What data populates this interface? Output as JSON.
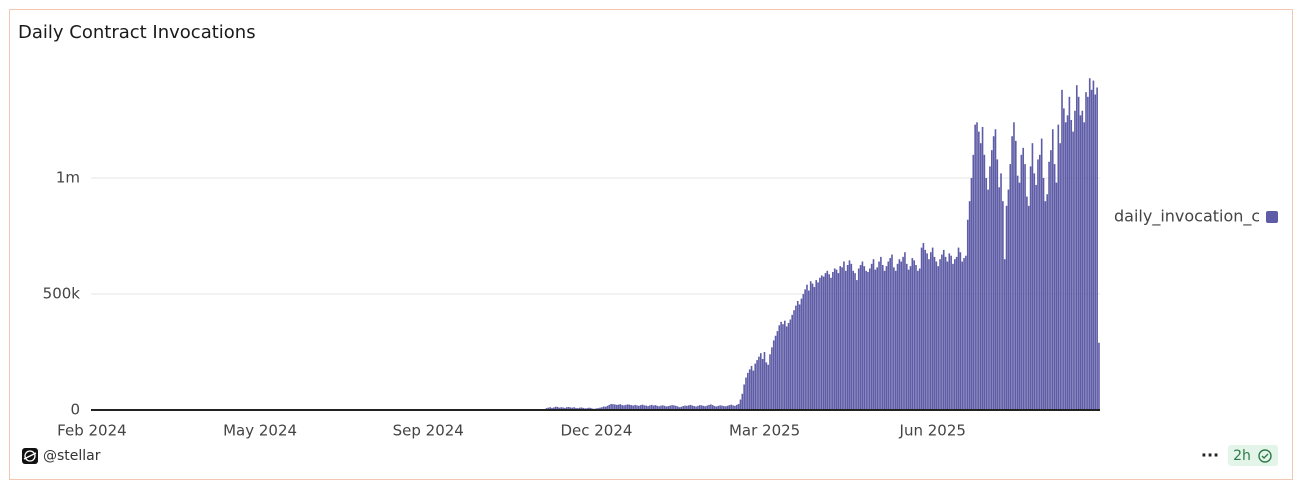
{
  "chart_data": {
    "type": "bar",
    "title": "Daily Contract Invocations",
    "footer_user": "@stellar",
    "more": "···",
    "freshness": "2h",
    "ylim": [
      0,
      1500000
    ],
    "yticks": [
      0,
      {
        "value": 500000,
        "label": "500k"
      },
      {
        "value": 1000000,
        "label": "1m"
      }
    ],
    "grid": true,
    "legend": "right",
    "categories": [
      "Feb 2024",
      null,
      null,
      null,
      null,
      null,
      null,
      null,
      null,
      null,
      null,
      null,
      null,
      null,
      null,
      null,
      null,
      null,
      null,
      null,
      null,
      null,
      null,
      null,
      null,
      null,
      null,
      null,
      null,
      null,
      null,
      null,
      null,
      null,
      null,
      null,
      null,
      null,
      null,
      null,
      null,
      null,
      null,
      null,
      null,
      null,
      null,
      null,
      null,
      null,
      null,
      null,
      null,
      null,
      null,
      null,
      null,
      null,
      null,
      null,
      null,
      null,
      null,
      null,
      null,
      null,
      null,
      null,
      null,
      null,
      null,
      null,
      null,
      null,
      null,
      null,
      null,
      null,
      null,
      null,
      null,
      null,
      null,
      null,
      null,
      null,
      null,
      null,
      null,
      null,
      null,
      "May 2024",
      null,
      null,
      null,
      null,
      null,
      null,
      null,
      null,
      null,
      null,
      null,
      null,
      null,
      null,
      null,
      null,
      null,
      null,
      null,
      null,
      null,
      null,
      null,
      null,
      null,
      null,
      null,
      null,
      null,
      null,
      null,
      null,
      null,
      null,
      null,
      null,
      null,
      null,
      null,
      null,
      null,
      null,
      null,
      null,
      null,
      null,
      null,
      null,
      null,
      null,
      null,
      null,
      null,
      null,
      null,
      null,
      null,
      null,
      null,
      null,
      null,
      null,
      null,
      null,
      null,
      null,
      null,
      null,
      null,
      null,
      null,
      null,
      null,
      null,
      null,
      null,
      null,
      null,
      null,
      null,
      null,
      null,
      null,
      null,
      null,
      null,
      null,
      null,
      null,
      null,
      "Sep 2024",
      null,
      null,
      null,
      null,
      null,
      null,
      null,
      null,
      null,
      null,
      null,
      null,
      null,
      null,
      null,
      null,
      null,
      null,
      null,
      null,
      null,
      null,
      null,
      null,
      null,
      null,
      null,
      null,
      null,
      null,
      null,
      null,
      null,
      null,
      null,
      null,
      null,
      null,
      null,
      null,
      null,
      null,
      null,
      null,
      null,
      null,
      null,
      null,
      null,
      null,
      null,
      null,
      null,
      null,
      null,
      null,
      null,
      null,
      null,
      null,
      null,
      null,
      null,
      null,
      null,
      null,
      null,
      null,
      null,
      null,
      null,
      null,
      null,
      null,
      null,
      null,
      null,
      null,
      null,
      null,
      null,
      null,
      null,
      null,
      null,
      null,
      null,
      null,
      null,
      null,
      "Dec 2024",
      null,
      null,
      null,
      null,
      null,
      null,
      null,
      null,
      null,
      null,
      null,
      null,
      null,
      null,
      null,
      null,
      null,
      null,
      null,
      null,
      null,
      null,
      null,
      null,
      null,
      null,
      null,
      null,
      null,
      null,
      null,
      null,
      null,
      null,
      null,
      null,
      null,
      null,
      null,
      null,
      null,
      null,
      null,
      null,
      null,
      null,
      null,
      null,
      null,
      null,
      null,
      null,
      null,
      null,
      null,
      null,
      null,
      null,
      null,
      null,
      null,
      null,
      null,
      null,
      null,
      null,
      null,
      null,
      null,
      null,
      null,
      null,
      null,
      null,
      null,
      null,
      null,
      null,
      null,
      null,
      null,
      null,
      null,
      null,
      null,
      null,
      null,
      null,
      null,
      null,
      "Mar 2025",
      null,
      null,
      null,
      null,
      null,
      null,
      null,
      null,
      null,
      null,
      null,
      null,
      null,
      null,
      null,
      null,
      null,
      null,
      null,
      null,
      null,
      null,
      null,
      null,
      null,
      null,
      null,
      null,
      null,
      null,
      null,
      null,
      null,
      null,
      null,
      null,
      null,
      null,
      null,
      null,
      null,
      null,
      null,
      null,
      null,
      null,
      null,
      null,
      null,
      null,
      null,
      null,
      null,
      null,
      null,
      null,
      null,
      null,
      null,
      null,
      null,
      null,
      null,
      null,
      null,
      null,
      null,
      null,
      null,
      null,
      null,
      null,
      null,
      null,
      null,
      null,
      null,
      null,
      null,
      null,
      null,
      null,
      null,
      null,
      null,
      null,
      null,
      null,
      null,
      null,
      "Jun 2025",
      null,
      null,
      null,
      null,
      null,
      null,
      null,
      null,
      null,
      null,
      null,
      null,
      null,
      null,
      null,
      null,
      null,
      null,
      null,
      null,
      null,
      null,
      null,
      null,
      null,
      null,
      null,
      null,
      null,
      null,
      null,
      null,
      null,
      null,
      null,
      null,
      null,
      null,
      null,
      null,
      null,
      null,
      null,
      null,
      null,
      null,
      null,
      null,
      null,
      null,
      null,
      null,
      null,
      null,
      null,
      null,
      null,
      null,
      null,
      null,
      null,
      null,
      null,
      null,
      null,
      null,
      null,
      null,
      null,
      null,
      null,
      null,
      null,
      null,
      null,
      null,
      null,
      null,
      null,
      null,
      null,
      null,
      null,
      null,
      null,
      null,
      null,
      null,
      null,
      null
    ],
    "series": [
      {
        "name": "daily_invocation_c",
        "color": "#5e5ca6",
        "values": [
          0,
          0,
          0,
          0,
          0,
          0,
          0,
          0,
          0,
          0,
          0,
          0,
          0,
          0,
          0,
          0,
          0,
          0,
          0,
          0,
          0,
          0,
          0,
          0,
          0,
          0,
          0,
          0,
          0,
          0,
          0,
          0,
          0,
          0,
          0,
          0,
          0,
          0,
          0,
          0,
          0,
          0,
          0,
          0,
          0,
          0,
          0,
          0,
          0,
          0,
          0,
          0,
          0,
          0,
          0,
          0,
          0,
          0,
          0,
          0,
          0,
          0,
          0,
          0,
          0,
          0,
          0,
          0,
          0,
          0,
          0,
          0,
          0,
          0,
          0,
          0,
          0,
          0,
          0,
          0,
          0,
          0,
          0,
          0,
          0,
          0,
          0,
          0,
          0,
          0,
          0,
          0,
          0,
          0,
          0,
          0,
          0,
          0,
          0,
          0,
          0,
          0,
          0,
          0,
          0,
          0,
          0,
          0,
          0,
          0,
          0,
          0,
          0,
          0,
          0,
          0,
          0,
          0,
          0,
          0,
          0,
          0,
          0,
          0,
          0,
          0,
          0,
          0,
          0,
          0,
          0,
          0,
          0,
          0,
          0,
          0,
          0,
          0,
          0,
          0,
          0,
          0,
          0,
          0,
          0,
          0,
          0,
          0,
          0,
          0,
          0,
          0,
          0,
          0,
          0,
          0,
          0,
          0,
          0,
          0,
          0,
          0,
          0,
          0,
          0,
          0,
          0,
          0,
          0,
          0,
          0,
          0,
          0,
          0,
          0,
          0,
          0,
          0,
          0,
          0,
          0,
          0,
          0,
          0,
          0,
          0,
          0,
          0,
          0,
          0,
          0,
          0,
          0,
          0,
          0,
          0,
          0,
          0,
          0,
          0,
          0,
          0,
          0,
          0,
          0,
          0,
          0,
          0,
          0,
          0,
          0,
          0,
          0,
          0,
          0,
          0,
          0,
          0,
          0,
          0,
          0,
          0,
          0,
          0,
          0,
          0,
          0,
          0,
          0,
          0,
          0,
          0,
          0,
          0,
          0,
          0,
          0,
          0,
          0,
          0,
          0,
          0,
          0,
          0,
          0,
          0,
          8000,
          10000,
          12000,
          9000,
          11000,
          14000,
          13000,
          10000,
          12000,
          11000,
          9000,
          12000,
          13000,
          11000,
          10000,
          12000,
          9000,
          8000,
          10000,
          11000,
          9000,
          7000,
          8000,
          10000,
          9000,
          6000,
          5000,
          7000,
          8000,
          10000,
          12000,
          15000,
          14000,
          18000,
          22000,
          26000,
          25000,
          24000,
          22000,
          23000,
          25000,
          21000,
          20000,
          22000,
          24000,
          23000,
          21000,
          19000,
          22000,
          20000,
          18000,
          21000,
          23000,
          20000,
          19000,
          17000,
          20000,
          22000,
          19000,
          21000,
          18000,
          16000,
          19000,
          20000,
          18000,
          15000,
          17000,
          19000,
          21000,
          20000,
          18000,
          16000,
          12000,
          14000,
          17000,
          19000,
          18000,
          20000,
          22000,
          19000,
          17000,
          15000,
          18000,
          21000,
          20000,
          18000,
          16000,
          19000,
          22000,
          24000,
          21000,
          17000,
          15000,
          18000,
          20000,
          19000,
          17000,
          16000,
          18000,
          21000,
          23000,
          20000,
          18000,
          22000,
          26000,
          45000,
          70000,
          110000,
          140000,
          160000,
          175000,
          190000,
          170000,
          200000,
          215000,
          230000,
          245000,
          220000,
          250000,
          205000,
          195000,
          240000,
          270000,
          300000,
          320000,
          340000,
          365000,
          380000,
          370000,
          385000,
          360000,
          375000,
          390000,
          410000,
          430000,
          450000,
          470000,
          455000,
          480000,
          500000,
          520000,
          540000,
          515000,
          555000,
          545000,
          530000,
          560000,
          550000,
          570000,
          580000,
          575000,
          590000,
          600000,
          585000,
          570000,
          595000,
          610000,
          605000,
          590000,
          620000,
          615000,
          640000,
          600000,
          625000,
          645000,
          630000,
          600000,
          590000,
          560000,
          610000,
          625000,
          640000,
          620000,
          600000,
          595000,
          610000,
          630000,
          650000,
          605000,
          615000,
          640000,
          660000,
          625000,
          600000,
          620000,
          640000,
          655000,
          670000,
          615000,
          600000,
          630000,
          650000,
          640000,
          660000,
          680000,
          630000,
          605000,
          620000,
          655000,
          645000,
          625000,
          600000,
          610000,
          700000,
          720000,
          690000,
          675000,
          650000,
          680000,
          700000,
          660000,
          640000,
          620000,
          650000,
          670000,
          690000,
          660000,
          640000,
          675000,
          665000,
          630000,
          650000,
          660000,
          700000,
          680000,
          640000,
          655000,
          665000,
          820000,
          900000,
          1000000,
          1100000,
          1230000,
          1240000,
          1200000,
          1150000,
          1220000,
          1100000,
          1000000,
          950000,
          1050000,
          1120000,
          1180000,
          1210000,
          1080000,
          960000,
          1020000,
          900000,
          650000,
          880000,
          950000,
          1060000,
          1180000,
          1240000,
          1160000,
          1010000,
          980000,
          1100000,
          1130000,
          1060000,
          920000,
          880000,
          1050000,
          1150000,
          1020000,
          970000,
          1080000,
          1100000,
          1170000,
          1000000,
          900000,
          930000,
          1070000,
          1120000,
          1210000,
          1060000,
          980000,
          1230000,
          1150000,
          1380000,
          1300000,
          1240000,
          1270000,
          1350000,
          1250000,
          1200000,
          1290000,
          1400000,
          1350000,
          1270000,
          1290000,
          1240000,
          1370000,
          1350000,
          1430000,
          1380000,
          1420000,
          1360000,
          1390000,
          290000
        ]
      }
    ]
  }
}
